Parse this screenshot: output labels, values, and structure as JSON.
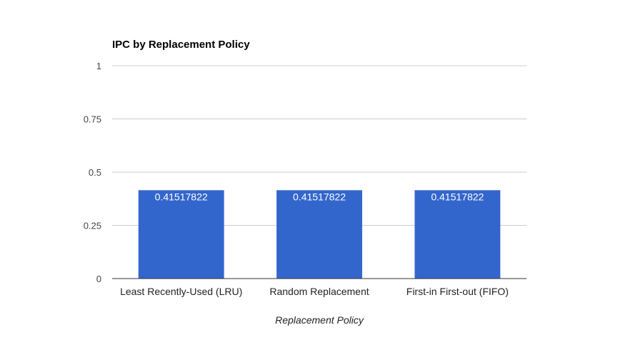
{
  "chart_data": {
    "type": "bar",
    "title": "IPC by Replacement Policy",
    "xlabel": "Replacement Policy",
    "ylabel": "",
    "categories": [
      "Least Recently-Used (LRU)",
      "Random Replacement",
      "First-in First-out (FIFO)"
    ],
    "values": [
      0.41517822,
      0.41517822,
      0.41517822
    ],
    "data_labels": [
      "0.41517822",
      "0.41517822",
      "0.41517822"
    ],
    "ylim": [
      0,
      1
    ],
    "yticks": [
      0,
      0.25,
      0.5,
      0.75,
      1
    ],
    "ytick_labels": [
      "0",
      "0.25",
      "0.5",
      "0.75",
      "1"
    ],
    "grid": true,
    "legend": "none",
    "colors": {
      "bar": "#3366cc",
      "grid": "#cccccc",
      "axis": "#333333"
    }
  }
}
